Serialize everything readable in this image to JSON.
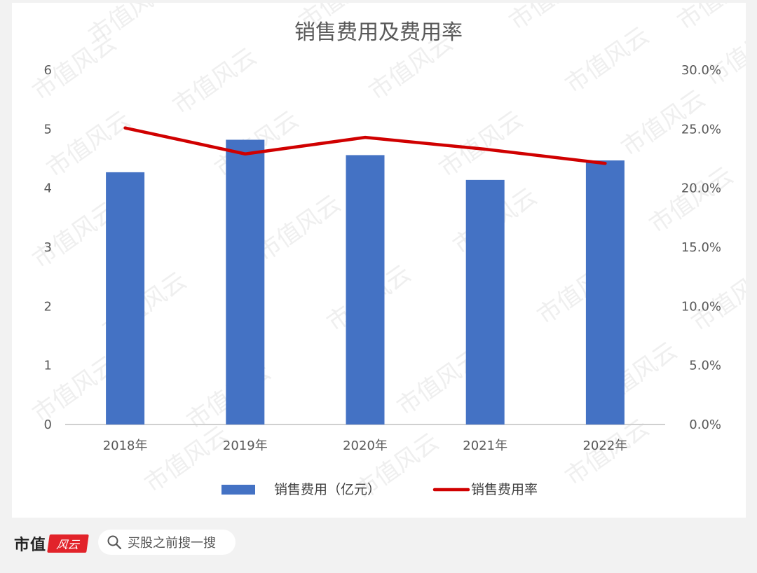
{
  "chart_data": {
    "type": "bar",
    "title": "销售费用及费用率",
    "categories": [
      "2018年",
      "2019年",
      "2020年",
      "2021年",
      "2022年"
    ],
    "series": [
      {
        "name": "销售费用（亿元）",
        "type": "bar",
        "axis": "left",
        "color": "#4472c4",
        "values": [
          4.27,
          4.82,
          4.56,
          4.14,
          4.47
        ]
      },
      {
        "name": "销售费用率",
        "type": "line",
        "axis": "right",
        "color": "#d00000",
        "values": [
          25.1,
          22.9,
          24.3,
          23.3,
          22.1
        ]
      }
    ],
    "y_left": {
      "ylim": [
        0,
        6
      ],
      "ticks": [
        "0",
        "1",
        "2",
        "3",
        "4",
        "5",
        "6"
      ]
    },
    "y_right": {
      "ylim": [
        0,
        30
      ],
      "ticks": [
        "0.0%",
        "5.0%",
        "10.0%",
        "15.0%",
        "20.0%",
        "25.0%",
        "30.0%"
      ]
    },
    "grid": false,
    "legend_position": "bottom"
  },
  "watermark": "市值风云",
  "footer": {
    "brand": "市值",
    "brand_seal": "风云",
    "search_placeholder": "买股之前搜一搜",
    "icon": "search-icon"
  }
}
